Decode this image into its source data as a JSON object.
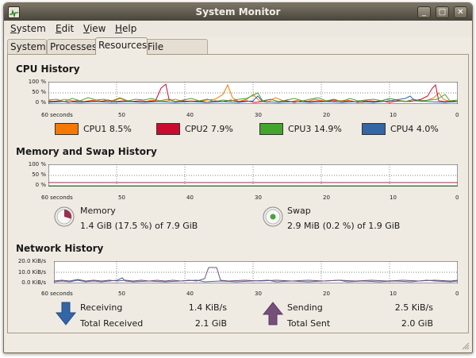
{
  "window": {
    "title": "System Monitor",
    "minimize_glyph": "_",
    "maximize_glyph": "□",
    "close_glyph": "✕"
  },
  "menubar": {
    "system_u": "S",
    "system_rest": "ystem",
    "edit_u": "E",
    "edit_rest": "dit",
    "view_u": "V",
    "view_rest": "iew",
    "help_u": "H",
    "help_rest": "elp"
  },
  "tabs": [
    "System",
    "Processes",
    "Resources",
    "File Systems"
  ],
  "active_tab": "Resources",
  "cpu": {
    "title": "CPU History",
    "y_ticks": [
      "100 %",
      "50 %",
      "0 %"
    ],
    "x_ticks": [
      "60 seconds",
      "50",
      "40",
      "30",
      "20",
      "10",
      "0"
    ],
    "legend": [
      {
        "label": "CPU1 8.5%",
        "color": "#f57900"
      },
      {
        "label": "CPU2 7.9%",
        "color": "#cc0a2f"
      },
      {
        "label": "CPU3 14.9%",
        "color": "#43a52d"
      },
      {
        "label": "CPU4 4.0%",
        "color": "#3465a4"
      }
    ]
  },
  "memory": {
    "title": "Memory and Swap History",
    "y_ticks": [
      "100 %",
      "50 %",
      "0 %"
    ],
    "x_ticks": [
      "60 seconds",
      "50",
      "40",
      "30",
      "20",
      "10",
      "0"
    ],
    "memory_label": "Memory",
    "memory_value": "1.4 GiB (17.5 %) of 7.9 GiB",
    "memory_color": "#9b2f4b",
    "swap_label": "Swap",
    "swap_value": "2.9 MiB (0.2 %) of 1.9 GiB",
    "swap_color": "#4aa13c"
  },
  "network": {
    "title": "Network History",
    "y_ticks": [
      "20.0 KiB/s",
      "10.0 KiB/s",
      "0.0 KiB/s"
    ],
    "x_ticks": [
      "60 seconds",
      "50",
      "40",
      "30",
      "20",
      "10",
      "0"
    ],
    "receiving_label": "Receiving",
    "receiving_value": "1.4 KiB/s",
    "total_received_label": "Total Received",
    "total_received_value": "2.1 GiB",
    "sending_label": "Sending",
    "sending_value": "2.5 KiB/s",
    "total_sent_label": "Total Sent",
    "total_sent_value": "2.0 GiB",
    "receiving_color": "#3465a4",
    "sending_color": "#75507b"
  }
}
